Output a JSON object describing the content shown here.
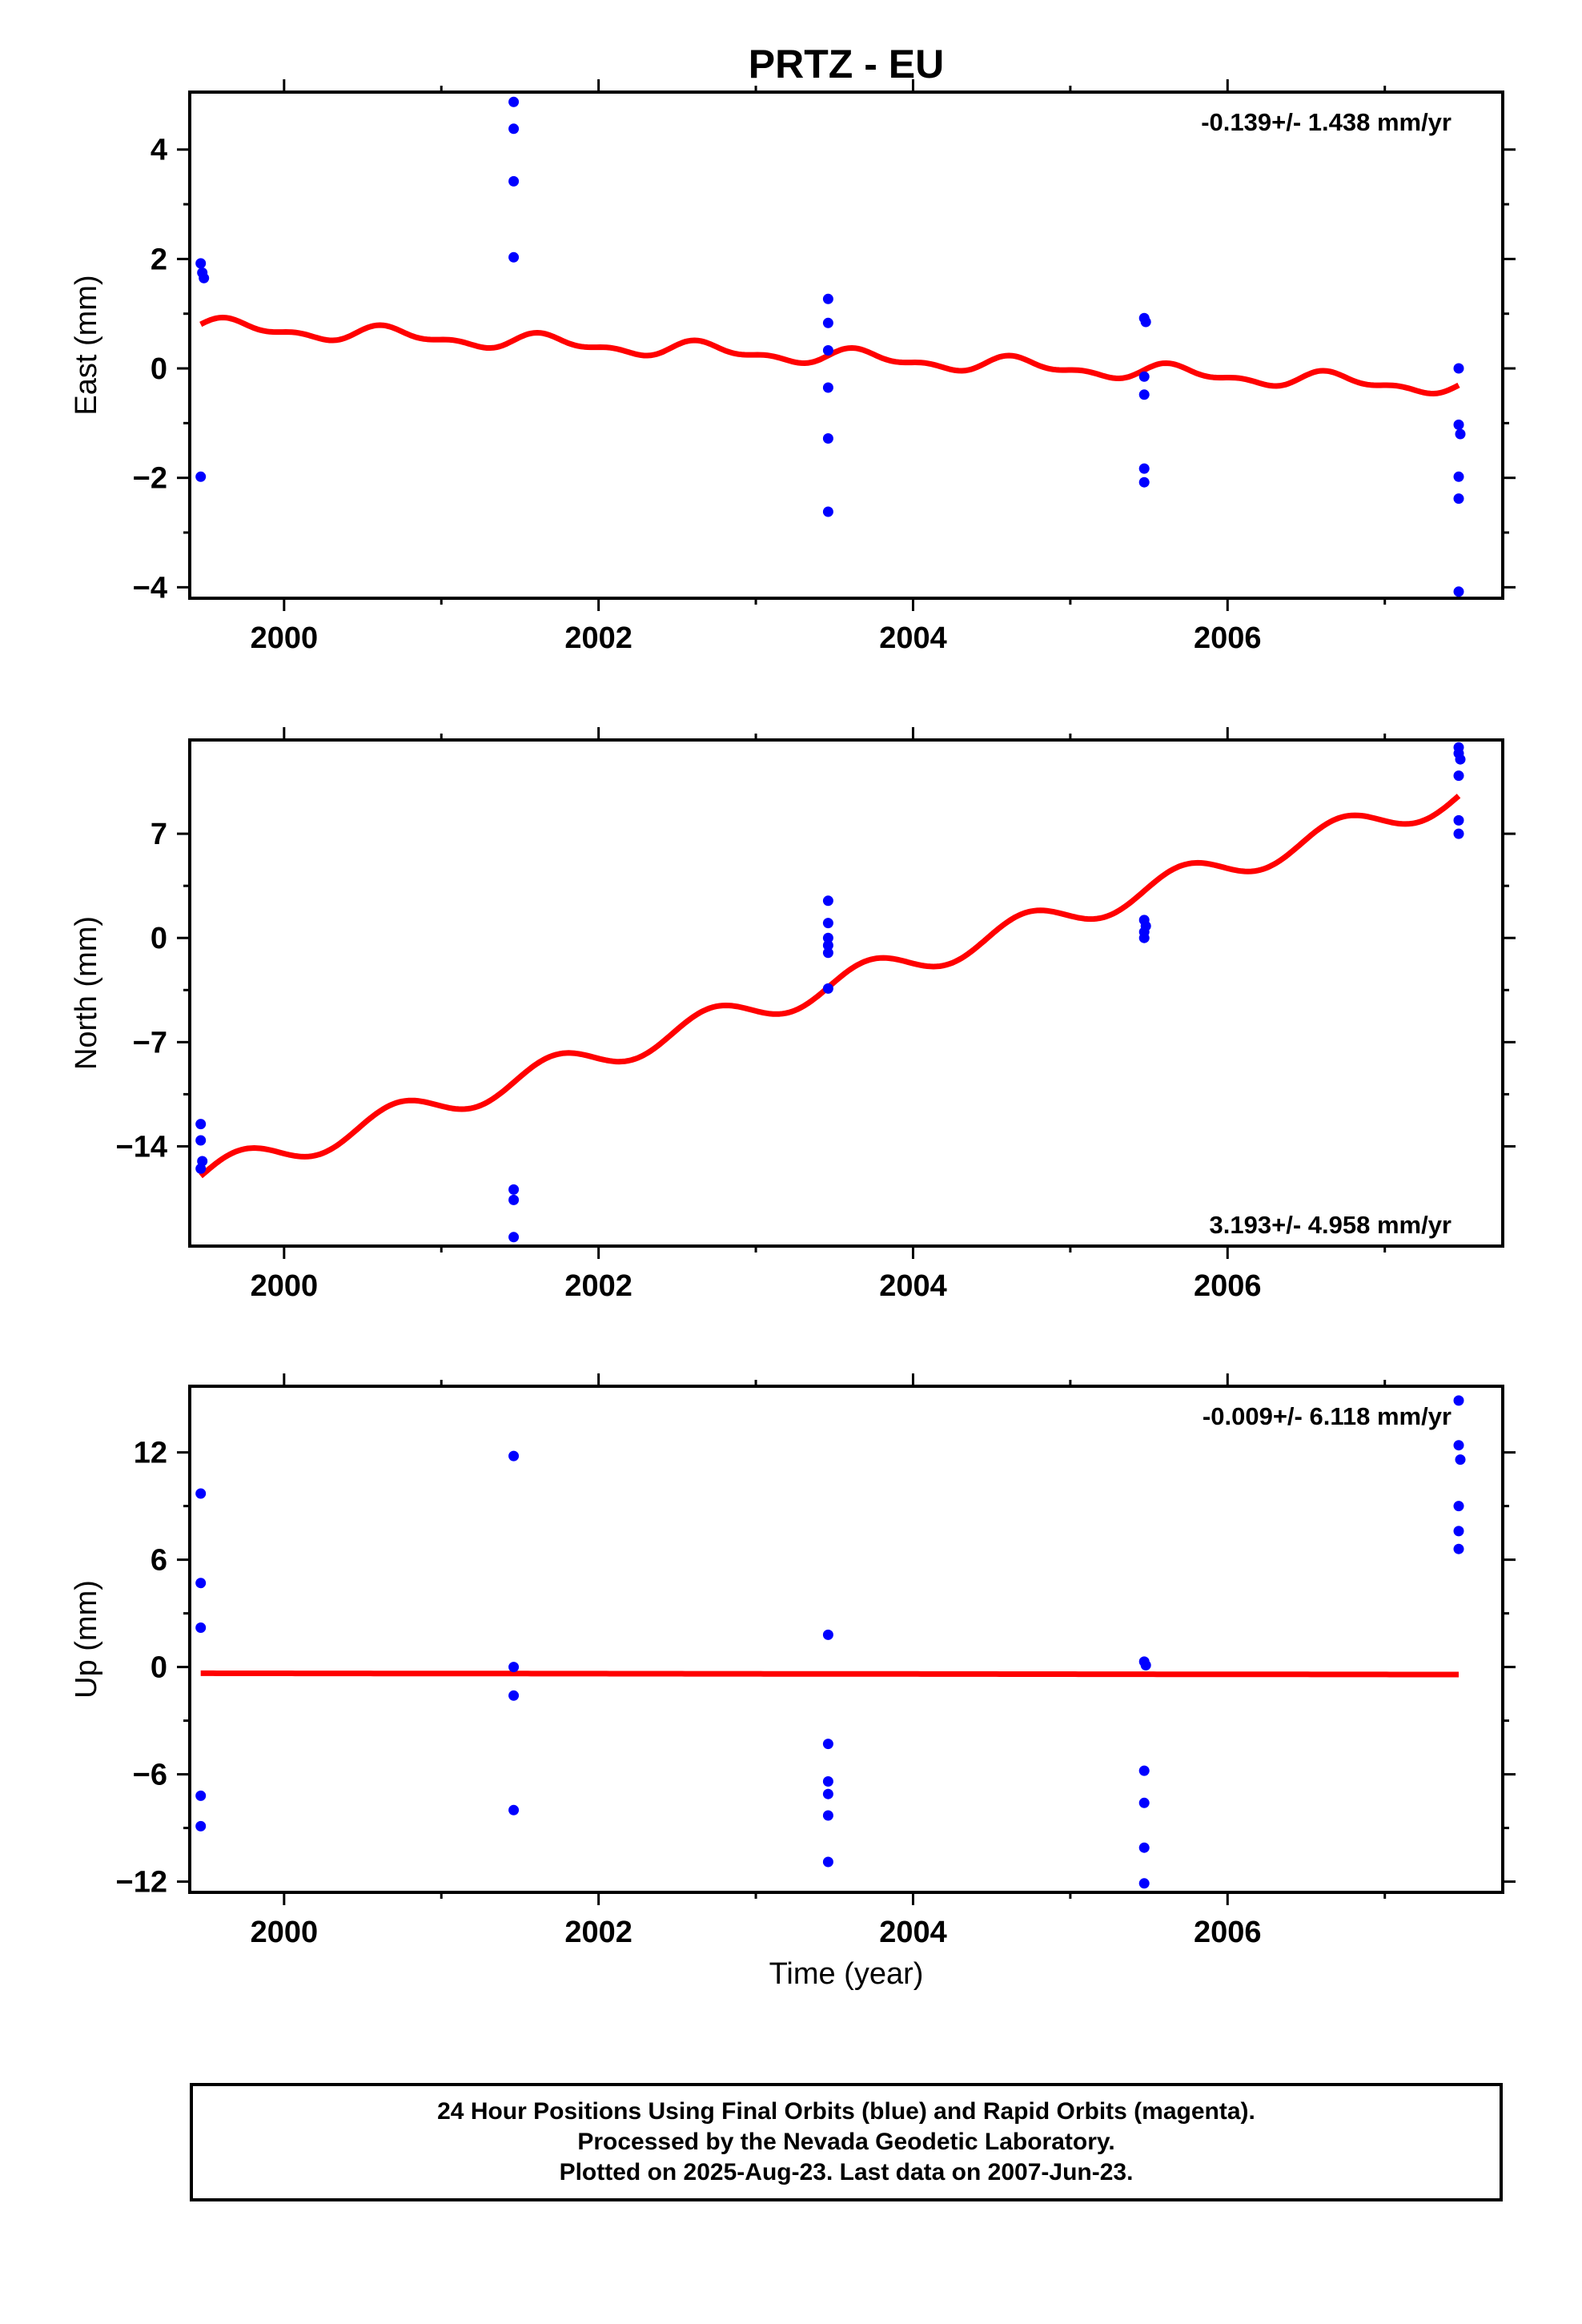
{
  "title": "PRTZ - EU",
  "xlabel": "Time (year)",
  "colors": {
    "final_orbits": "#0000ff",
    "model": "#ff0000",
    "axes": "#000000"
  },
  "footer": {
    "lines": [
      "24 Hour Positions Using Final Orbits (blue) and Rapid Orbits (magenta).",
      "Processed by the Nevada Geodetic Laboratory.",
      "Plotted on 2025-Aug-23. Last data on 2007-Jun-23."
    ]
  },
  "chart_data": [
    {
      "type": "scatter",
      "name": "east",
      "ylabel": "East (mm)",
      "rate_label": "-0.139+/- 1.438 mm/yr",
      "rate_position": "top-right",
      "xlim": [
        1999.4,
        2007.75
      ],
      "ylim": [
        -4.2,
        5.05
      ],
      "x_ticks": [
        2000,
        2002,
        2004,
        2006
      ],
      "x_tick_labels": [
        "2000",
        "2002",
        "2004",
        "2006"
      ],
      "y_ticks": [
        -4,
        -2,
        0,
        2,
        4
      ],
      "y_tick_labels": [
        "−4",
        "−2",
        "0",
        "2",
        "4"
      ],
      "points": [
        [
          1999.47,
          1.92
        ],
        [
          1999.48,
          1.75
        ],
        [
          1999.49,
          1.65
        ],
        [
          1999.47,
          -1.98
        ],
        [
          2001.46,
          4.87
        ],
        [
          2001.46,
          4.38
        ],
        [
          2001.46,
          3.42
        ],
        [
          2001.46,
          2.03
        ],
        [
          2003.46,
          1.27
        ],
        [
          2003.46,
          0.83
        ],
        [
          2003.46,
          0.33
        ],
        [
          2003.46,
          -0.35
        ],
        [
          2003.46,
          -1.28
        ],
        [
          2003.46,
          -2.62
        ],
        [
          2005.47,
          0.92
        ],
        [
          2005.48,
          0.85
        ],
        [
          2005.47,
          -0.15
        ],
        [
          2005.47,
          -0.48
        ],
        [
          2005.47,
          -1.83
        ],
        [
          2005.47,
          -2.08
        ],
        [
          2007.47,
          0.0
        ],
        [
          2007.47,
          -1.03
        ],
        [
          2007.48,
          -1.2
        ],
        [
          2007.47,
          -1.98
        ],
        [
          2007.47,
          -2.38
        ],
        [
          2007.47,
          -4.08
        ]
      ],
      "model": {
        "x0": 1999.47,
        "x1": 2007.47,
        "offset": 0.77,
        "rate": -0.139,
        "amp1": 0.12,
        "phase1": 0.3,
        "amp2": 0.07,
        "phase2": 0.0,
        "ref": 1999.47
      }
    },
    {
      "type": "scatter",
      "name": "north",
      "ylabel": "North (mm)",
      "rate_label": "3.193+/- 4.958 mm/yr",
      "rate_position": "bottom-right",
      "xlim": [
        1999.4,
        2007.75
      ],
      "ylim": [
        -20.7,
        13.3
      ],
      "x_ticks": [
        2000,
        2002,
        2004,
        2006
      ],
      "x_tick_labels": [
        "2000",
        "2002",
        "2004",
        "2006"
      ],
      "y_ticks": [
        -14,
        -7,
        0,
        7
      ],
      "y_tick_labels": [
        "−14",
        "−7",
        "0",
        "7"
      ],
      "points": [
        [
          1999.47,
          -12.5
        ],
        [
          1999.47,
          -13.6
        ],
        [
          1999.48,
          -15.0
        ],
        [
          1999.47,
          -15.5
        ],
        [
          2001.46,
          -16.9
        ],
        [
          2001.46,
          -17.6
        ],
        [
          2001.46,
          -20.1
        ],
        [
          2003.46,
          2.5
        ],
        [
          2003.46,
          1.0
        ],
        [
          2003.46,
          0.0
        ],
        [
          2003.46,
          -0.5
        ],
        [
          2003.46,
          -1.0
        ],
        [
          2003.46,
          -3.4
        ],
        [
          2005.47,
          1.2
        ],
        [
          2005.48,
          0.8
        ],
        [
          2005.47,
          0.4
        ],
        [
          2005.47,
          0.0
        ],
        [
          2007.47,
          12.8
        ],
        [
          2007.47,
          12.4
        ],
        [
          2007.48,
          12.0
        ],
        [
          2007.47,
          10.9
        ],
        [
          2007.47,
          7.9
        ],
        [
          2007.47,
          7.0
        ]
      ],
      "model": {
        "x0": 1999.47,
        "x1": 2007.47,
        "offset": -16.0,
        "rate": 3.193,
        "amp1": 0.95,
        "phase1": 0.0,
        "amp2": 0.0,
        "phase2": 0.0,
        "ref": 1999.47
      }
    },
    {
      "type": "scatter",
      "name": "up",
      "ylabel": "Up (mm)",
      "rate_label": "-0.009+/- 6.118 mm/yr",
      "rate_position": "top-right",
      "xlim": [
        1999.4,
        2007.75
      ],
      "ylim": [
        -12.6,
        15.7
      ],
      "x_ticks": [
        2000,
        2002,
        2004,
        2006
      ],
      "x_tick_labels": [
        "2000",
        "2002",
        "2004",
        "2006"
      ],
      "y_ticks": [
        -12,
        -6,
        0,
        6,
        12
      ],
      "y_tick_labels": [
        "−12",
        "−6",
        "0",
        "6",
        "12"
      ],
      "points": [
        [
          1999.47,
          9.7
        ],
        [
          1999.47,
          4.7
        ],
        [
          1999.47,
          2.2
        ],
        [
          1999.47,
          -7.2
        ],
        [
          1999.47,
          -8.9
        ],
        [
          2001.46,
          11.8
        ],
        [
          2001.46,
          0.0
        ],
        [
          2001.46,
          -1.6
        ],
        [
          2001.46,
          -8.0
        ],
        [
          2003.46,
          1.8
        ],
        [
          2003.46,
          -4.3
        ],
        [
          2003.46,
          -6.4
        ],
        [
          2003.46,
          -7.1
        ],
        [
          2003.46,
          -8.3
        ],
        [
          2003.46,
          -10.9
        ],
        [
          2005.47,
          0.3
        ],
        [
          2005.48,
          0.1
        ],
        [
          2005.47,
          -5.8
        ],
        [
          2005.47,
          -7.6
        ],
        [
          2005.47,
          -10.1
        ],
        [
          2005.47,
          -12.1
        ],
        [
          2007.47,
          14.9
        ],
        [
          2007.47,
          12.4
        ],
        [
          2007.48,
          11.6
        ],
        [
          2007.47,
          9.0
        ],
        [
          2007.47,
          7.6
        ],
        [
          2007.47,
          6.6
        ]
      ],
      "model": {
        "x0": 1999.47,
        "x1": 2007.47,
        "offset": -0.35,
        "rate": -0.009,
        "amp1": 0.0,
        "phase1": 0.0,
        "amp2": 0.0,
        "phase2": 0.0,
        "ref": 1999.47
      }
    }
  ]
}
